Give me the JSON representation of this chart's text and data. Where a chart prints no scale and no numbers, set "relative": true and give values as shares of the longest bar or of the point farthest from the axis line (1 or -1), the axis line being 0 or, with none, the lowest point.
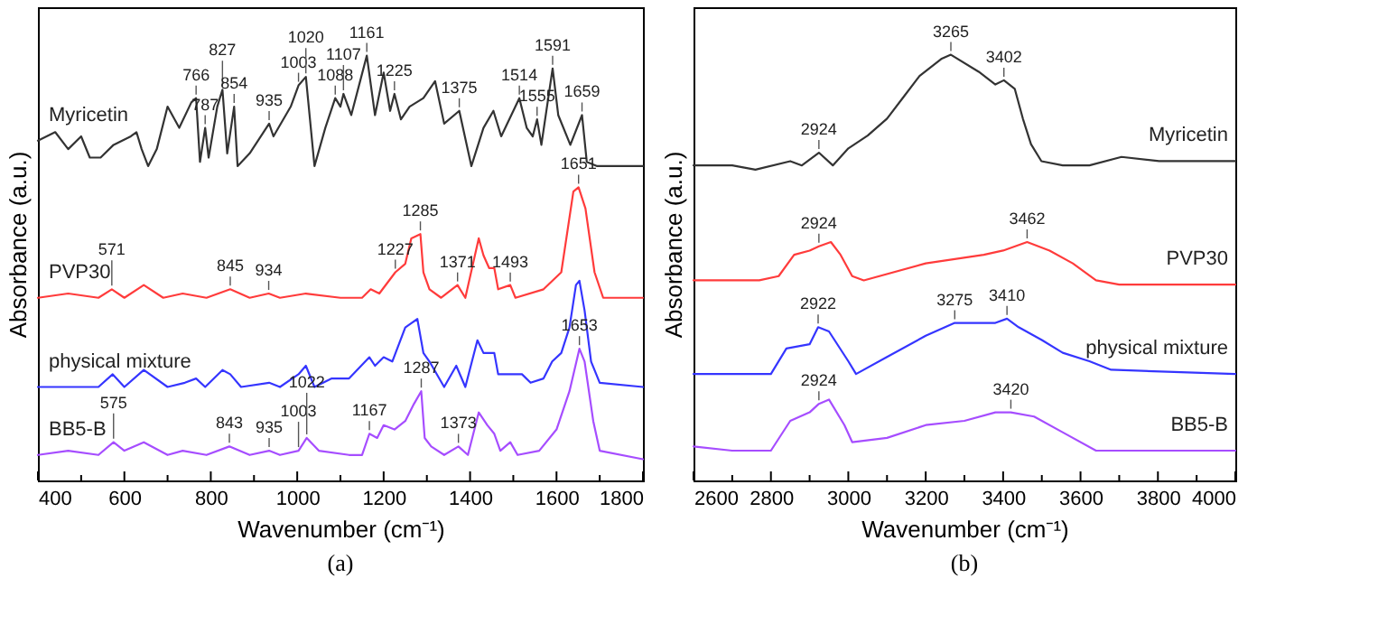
{
  "chart_data": [
    {
      "type": "line",
      "xlabel": "Wavenumber (cm⁻¹)",
      "ylabel": "Absorbance (a.u.)",
      "relative": true,
      "tick_labels": "x",
      "xlim": [
        400,
        1800
      ],
      "xticks": [
        400,
        {
          "value": 500,
          "label": null
        },
        600,
        {
          "value": 700,
          "label": null
        },
        800,
        {
          "value": 900,
          "label": null
        },
        1000,
        {
          "value": 1100,
          "label": null
        },
        1200,
        {
          "value": 1300,
          "label": null
        },
        1400,
        {
          "value": 1500,
          "label": null
        },
        1600,
        {
          "value": 1700,
          "label": null
        },
        1800
      ],
      "series": [
        {
          "name": "Myricetin",
          "color": "#333333",
          "x": [
            400,
            440,
            470,
            500,
            520,
            545,
            575,
            615,
            628,
            640,
            655,
            675,
            700,
            727,
            755,
            766,
            775,
            787,
            795,
            815,
            827,
            838,
            854,
            862,
            890,
            935,
            945,
            985,
            1003,
            1020,
            1040,
            1065,
            1088,
            1100,
            1107,
            1125,
            1161,
            1180,
            1200,
            1215,
            1225,
            1240,
            1260,
            1292,
            1319,
            1340,
            1375,
            1403,
            1431,
            1454,
            1472,
            1514,
            1531,
            1545,
            1555,
            1565,
            1591,
            1604,
            1632,
            1659,
            1670,
            1694,
            1800
          ],
          "values": [
            0.8,
            0.82,
            0.78,
            0.81,
            0.76,
            0.76,
            0.79,
            0.81,
            0.82,
            0.78,
            0.74,
            0.78,
            0.88,
            0.83,
            0.89,
            0.9,
            0.75,
            0.83,
            0.76,
            0.88,
            0.92,
            0.77,
            0.88,
            0.74,
            0.77,
            0.84,
            0.81,
            0.88,
            0.93,
            0.95,
            0.74,
            0.83,
            0.9,
            0.88,
            0.91,
            0.86,
            1.0,
            0.86,
            0.96,
            0.87,
            0.91,
            0.85,
            0.88,
            0.9,
            0.94,
            0.84,
            0.87,
            0.74,
            0.83,
            0.87,
            0.81,
            0.9,
            0.83,
            0.81,
            0.85,
            0.79,
            0.97,
            0.86,
            0.79,
            0.86,
            0.75,
            0.74,
            0.74
          ]
        },
        {
          "name": "PVP30",
          "color": "#ff3b3b",
          "x": [
            400,
            470,
            540,
            571,
            600,
            645,
            690,
            735,
            790,
            845,
            890,
            934,
            960,
            1020,
            1100,
            1150,
            1170,
            1190,
            1227,
            1250,
            1264,
            1285,
            1292,
            1306,
            1333,
            1371,
            1389,
            1420,
            1431,
            1444,
            1456,
            1465,
            1493,
            1505,
            1570,
            1611,
            1639,
            1651,
            1667,
            1688,
            1708,
            1800
          ],
          "values": [
            0.43,
            0.44,
            0.43,
            0.45,
            0.43,
            0.46,
            0.43,
            0.44,
            0.43,
            0.45,
            0.43,
            0.44,
            0.43,
            0.44,
            0.43,
            0.43,
            0.45,
            0.44,
            0.49,
            0.51,
            0.57,
            0.58,
            0.49,
            0.45,
            0.43,
            0.46,
            0.43,
            0.57,
            0.53,
            0.5,
            0.5,
            0.45,
            0.46,
            0.43,
            0.45,
            0.49,
            0.68,
            0.69,
            0.64,
            0.49,
            0.43,
            0.43
          ]
        },
        {
          "name": "physical mixture",
          "color": "#3535ff",
          "x": [
            400,
            540,
            573,
            600,
            645,
            700,
            740,
            766,
            787,
            827,
            845,
            870,
            935,
            960,
            1003,
            1020,
            1040,
            1080,
            1120,
            1167,
            1180,
            1200,
            1220,
            1250,
            1264,
            1278,
            1292,
            1306,
            1340,
            1368,
            1389,
            1417,
            1431,
            1456,
            1465,
            1493,
            1520,
            1540,
            1570,
            1590,
            1611,
            1630,
            1645,
            1653,
            1665,
            1680,
            1700,
            1800
          ],
          "values": [
            0.22,
            0.22,
            0.25,
            0.22,
            0.26,
            0.22,
            0.23,
            0.24,
            0.22,
            0.26,
            0.25,
            0.22,
            0.23,
            0.22,
            0.25,
            0.27,
            0.22,
            0.24,
            0.24,
            0.29,
            0.27,
            0.29,
            0.28,
            0.36,
            0.37,
            0.38,
            0.3,
            0.28,
            0.22,
            0.27,
            0.22,
            0.33,
            0.3,
            0.3,
            0.25,
            0.25,
            0.25,
            0.23,
            0.24,
            0.28,
            0.3,
            0.36,
            0.46,
            0.47,
            0.4,
            0.28,
            0.23,
            0.22
          ]
        },
        {
          "name": "BB5-B",
          "color": "#a64dff",
          "x": [
            400,
            470,
            540,
            575,
            600,
            645,
            700,
            735,
            790,
            843,
            890,
            935,
            960,
            1003,
            1022,
            1050,
            1120,
            1150,
            1167,
            1185,
            1200,
            1225,
            1250,
            1270,
            1287,
            1295,
            1310,
            1340,
            1373,
            1395,
            1420,
            1440,
            1456,
            1470,
            1493,
            1510,
            1560,
            1600,
            1630,
            1653,
            1665,
            1685,
            1700,
            1800
          ],
          "values": [
            0.06,
            0.07,
            0.06,
            0.09,
            0.07,
            0.09,
            0.06,
            0.07,
            0.06,
            0.08,
            0.06,
            0.07,
            0.06,
            0.07,
            0.1,
            0.07,
            0.06,
            0.06,
            0.11,
            0.1,
            0.13,
            0.12,
            0.14,
            0.18,
            0.21,
            0.1,
            0.08,
            0.06,
            0.08,
            0.06,
            0.16,
            0.13,
            0.11,
            0.07,
            0.09,
            0.06,
            0.07,
            0.12,
            0.21,
            0.31,
            0.28,
            0.14,
            0.07,
            0.05
          ]
        }
      ],
      "annotations": [
        {
          "text": "766",
          "x": 766,
          "y": 0.9
        },
        {
          "text": "787",
          "x": 787,
          "y": 0.83
        },
        {
          "text": "827",
          "x": 827,
          "y": 0.92
        },
        {
          "text": "854",
          "x": 854,
          "y": 0.88
        },
        {
          "text": "935",
          "x": 935,
          "y": 0.84
        },
        {
          "text": "1003",
          "x": 1003,
          "y": 0.93
        },
        {
          "text": "1020",
          "x": 1020,
          "y": 0.95
        },
        {
          "text": "1088",
          "x": 1088,
          "y": 0.9
        },
        {
          "text": "1107",
          "x": 1107,
          "y": 0.91
        },
        {
          "text": "1161",
          "x": 1161,
          "y": 1.0
        },
        {
          "text": "1225",
          "x": 1225,
          "y": 0.91
        },
        {
          "text": "1375",
          "x": 1375,
          "y": 0.87
        },
        {
          "text": "1514",
          "x": 1514,
          "y": 0.9
        },
        {
          "text": "1555",
          "x": 1555,
          "y": 0.85
        },
        {
          "text": "1591",
          "x": 1591,
          "y": 0.97
        },
        {
          "text": "1659",
          "x": 1659,
          "y": 0.86
        },
        {
          "text": "571",
          "x": 571,
          "y": 0.45
        },
        {
          "text": "845",
          "x": 845,
          "y": 0.45
        },
        {
          "text": "934",
          "x": 934,
          "y": 0.44
        },
        {
          "text": "1227",
          "x": 1227,
          "y": 0.49
        },
        {
          "text": "1285",
          "x": 1285,
          "y": 0.58
        },
        {
          "text": "1371",
          "x": 1371,
          "y": 0.46
        },
        {
          "text": "1493",
          "x": 1493,
          "y": 0.46
        },
        {
          "text": "1651",
          "x": 1651,
          "y": 0.69
        },
        {
          "text": "575",
          "x": 575,
          "y": 0.09
        },
        {
          "text": "843",
          "x": 843,
          "y": 0.08
        },
        {
          "text": "935",
          "x": 935,
          "y": 0.07
        },
        {
          "text": "1003",
          "x": 1003,
          "y": 0.07
        },
        {
          "text": "1022",
          "x": 1022,
          "y": 0.1
        },
        {
          "text": "1167",
          "x": 1167,
          "y": 0.11
        },
        {
          "text": "1287",
          "x": 1287,
          "y": 0.21
        },
        {
          "text": "1373",
          "x": 1373,
          "y": 0.08
        },
        {
          "text": "1653",
          "x": 1653,
          "y": 0.31
        },
        "(a)"
      ]
    },
    {
      "type": "line",
      "xlabel": "Wavenumber (cm⁻¹)",
      "ylabel": "Absorbance (a.u.)",
      "relative": true,
      "tick_labels": "x",
      "xlim": [
        2600,
        4000
      ],
      "xticks": [
        2600,
        {
          "value": 2700,
          "label": null
        },
        2800,
        {
          "value": 2900,
          "label": null
        },
        3000,
        {
          "value": 3100,
          "label": null
        },
        3200,
        {
          "value": 3300,
          "label": null
        },
        3400,
        {
          "value": 3500,
          "label": null
        },
        3600,
        {
          "value": 3700,
          "label": null
        },
        3800,
        {
          "value": 3900,
          "label": null
        },
        4000
      ],
      "series": [
        {
          "name": "Myricetin",
          "color": "#333333",
          "x": [
            2600,
            2700,
            2760,
            2850,
            2880,
            2924,
            2960,
            3000,
            3050,
            3100,
            3142,
            3184,
            3240,
            3265,
            3337,
            3380,
            3402,
            3430,
            3451,
            3472,
            3499,
            3554,
            3623,
            3706,
            3803,
            4000
          ],
          "values": [
            0.74,
            0.74,
            0.73,
            0.75,
            0.74,
            0.77,
            0.74,
            0.78,
            0.81,
            0.85,
            0.9,
            0.95,
            0.99,
            1.0,
            0.96,
            0.93,
            0.94,
            0.92,
            0.85,
            0.79,
            0.75,
            0.74,
            0.74,
            0.76,
            0.75,
            0.75
          ]
        },
        {
          "name": "PVP30",
          "color": "#ff3b3b",
          "x": [
            2600,
            2770,
            2820,
            2860,
            2900,
            2924,
            2955,
            2980,
            3010,
            3040,
            3200,
            3350,
            3400,
            3462,
            3520,
            3580,
            3640,
            3700,
            4000
          ],
          "values": [
            0.47,
            0.47,
            0.48,
            0.53,
            0.54,
            0.55,
            0.56,
            0.53,
            0.48,
            0.47,
            0.51,
            0.53,
            0.54,
            0.56,
            0.54,
            0.51,
            0.47,
            0.46,
            0.46
          ]
        },
        {
          "name": "physical mixture",
          "color": "#3535ff",
          "x": [
            2600,
            2800,
            2840,
            2900,
            2922,
            2950,
            3000,
            3020,
            3100,
            3200,
            3275,
            3340,
            3380,
            3410,
            3440,
            3500,
            3554,
            3623,
            3679,
            4000
          ],
          "values": [
            0.25,
            0.25,
            0.31,
            0.32,
            0.36,
            0.35,
            0.28,
            0.25,
            0.29,
            0.34,
            0.37,
            0.37,
            0.37,
            0.38,
            0.36,
            0.33,
            0.3,
            0.28,
            0.26,
            0.25
          ]
        },
        {
          "name": "BB5-B",
          "color": "#a64dff",
          "x": [
            2600,
            2700,
            2800,
            2850,
            2900,
            2924,
            2950,
            2990,
            3010,
            3100,
            3200,
            3300,
            3380,
            3420,
            3480,
            3560,
            3640,
            4000
          ],
          "values": [
            0.08,
            0.07,
            0.07,
            0.14,
            0.16,
            0.18,
            0.19,
            0.13,
            0.09,
            0.1,
            0.13,
            0.14,
            0.16,
            0.16,
            0.15,
            0.11,
            0.07,
            0.07
          ]
        }
      ],
      "annotations": [
        {
          "text": "2924",
          "x": 2924,
          "y": 0.77
        },
        {
          "text": "3265",
          "x": 3265,
          "y": 1.0
        },
        {
          "text": "3402",
          "x": 3402,
          "y": 0.94
        },
        {
          "text": "2924",
          "x": 2924,
          "y": 0.55
        },
        {
          "text": "3462",
          "x": 3462,
          "y": 0.56
        },
        {
          "text": "2922",
          "x": 2922,
          "y": 0.36
        },
        {
          "text": "3275",
          "x": 3275,
          "y": 0.37
        },
        {
          "text": "3410",
          "x": 3410,
          "y": 0.38
        },
        {
          "text": "2924",
          "x": 2924,
          "y": 0.18
        },
        {
          "text": "3420",
          "x": 3420,
          "y": 0.16
        },
        "(b)"
      ]
    }
  ]
}
